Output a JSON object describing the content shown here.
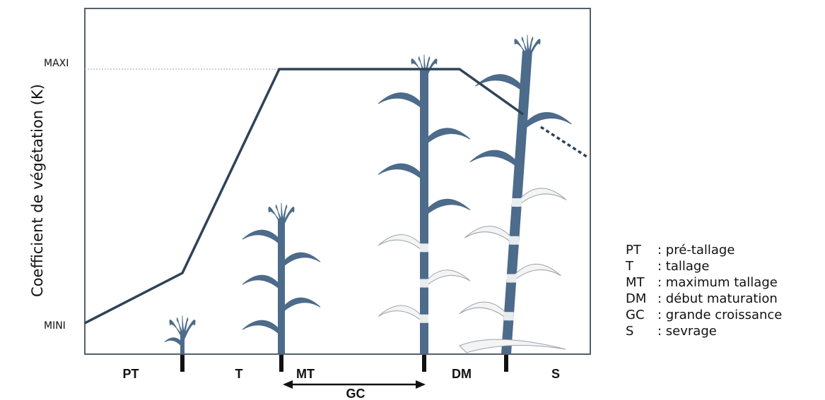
{
  "diagram": {
    "y_axis_label": "Coefficient de végétation (K)",
    "levels": {
      "max": "MAXI",
      "min": "MINI"
    },
    "phases": [
      "PT",
      "T",
      "MT",
      "DM",
      "S"
    ],
    "span_label": "GC",
    "legend": [
      {
        "abbr": "PT",
        "text": ": pré-tallage"
      },
      {
        "abbr": "T",
        "text": ": tallage"
      },
      {
        "abbr": "MT",
        "text": ": maximum tallage"
      },
      {
        "abbr": "DM",
        "text": ": début maturation"
      },
      {
        "abbr": "GC",
        "text": ": grande croissance"
      },
      {
        "abbr": "S",
        "text": ": sevrage"
      }
    ]
  }
}
